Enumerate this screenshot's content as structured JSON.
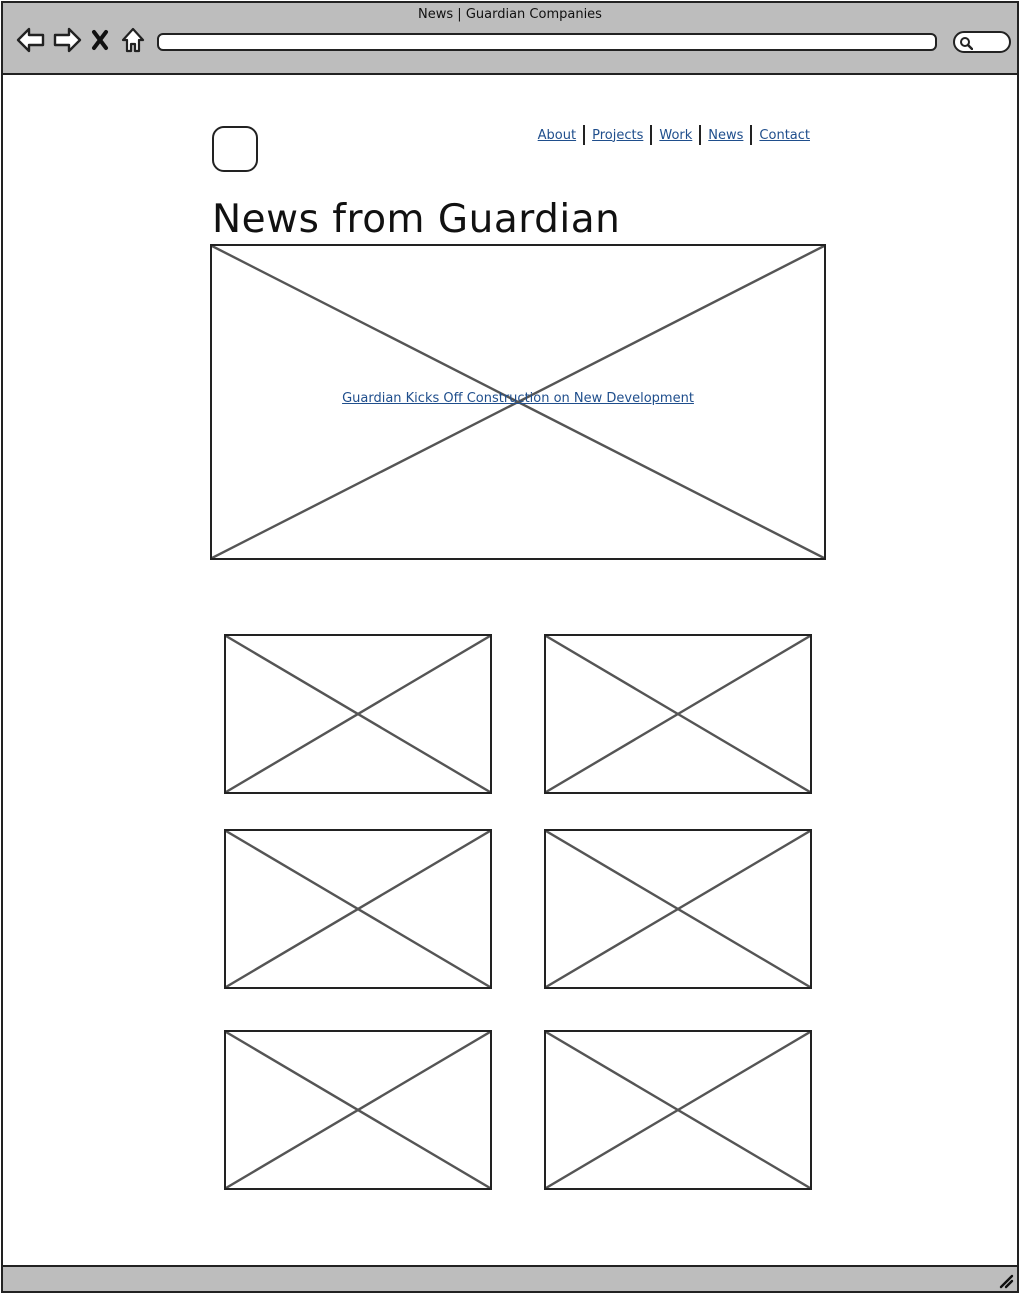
{
  "browser": {
    "title": "News | Guardian Companies",
    "url": "",
    "buttons": [
      "back-icon",
      "forward-icon",
      "close-icon",
      "home-icon"
    ]
  },
  "header": {
    "nav": [
      {
        "label": "About"
      },
      {
        "label": "Projects"
      },
      {
        "label": "Work"
      },
      {
        "label": "News"
      },
      {
        "label": "Contact"
      }
    ]
  },
  "main": {
    "title": "News from Guardian",
    "hero": {
      "link_text": "Guardian Kicks Off Construction on New Development"
    },
    "grid": {
      "count": 6
    }
  },
  "colors": {
    "chrome": "#bdbdbd",
    "link": "#1f4e8c",
    "stroke": "#222222",
    "placeholder_cross": "#555555"
  }
}
